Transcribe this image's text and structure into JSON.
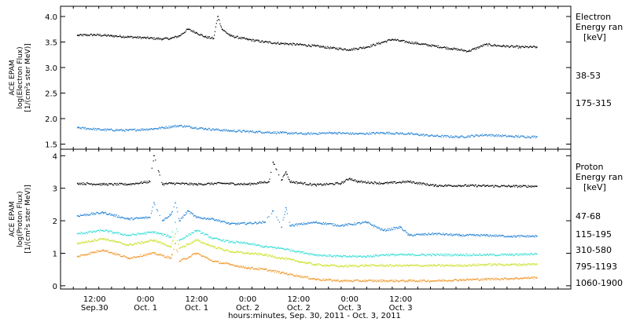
{
  "chart_data": [
    {
      "type": "scatter",
      "panel": "electron",
      "ylabel_lines": [
        "ACE EPAM",
        "log(Electron Flux)",
        "[1/(cm²s ster MeV)]"
      ],
      "ylim": [
        1.4,
        4.2
      ],
      "yticks": [
        1.5,
        2.0,
        2.5,
        3.0,
        3.5,
        4.0
      ],
      "ytick_labels": [
        "1.5",
        "2.0",
        "2.5",
        "3.0",
        "3.5",
        "4.0"
      ],
      "legend_title_lines": [
        "Electron",
        "Energy ran",
        "[keV]"
      ],
      "series": [
        {
          "name": "38-53",
          "color": "#000000",
          "x": [
            0,
            4,
            8,
            12,
            16,
            20,
            22,
            24,
            26,
            28,
            30,
            32,
            33,
            34,
            36,
            40,
            44,
            48,
            52,
            56,
            60,
            64,
            68,
            72,
            74,
            76,
            80,
            84,
            88,
            92,
            96,
            100,
            104,
            108
          ],
          "y": [
            3.63,
            3.64,
            3.62,
            3.6,
            3.58,
            3.56,
            3.57,
            3.62,
            3.75,
            3.68,
            3.6,
            3.57,
            4.0,
            3.75,
            3.62,
            3.55,
            3.5,
            3.47,
            3.45,
            3.42,
            3.38,
            3.35,
            3.4,
            3.5,
            3.55,
            3.52,
            3.47,
            3.42,
            3.37,
            3.32,
            3.45,
            3.42,
            3.4,
            3.4
          ]
        },
        {
          "name": "175-315",
          "color": "#1e7fd4",
          "x": [
            0,
            6,
            12,
            18,
            24,
            30,
            36,
            42,
            48,
            54,
            60,
            66,
            72,
            78,
            84,
            90,
            96,
            102,
            108
          ],
          "y": [
            1.82,
            1.78,
            1.77,
            1.8,
            1.86,
            1.8,
            1.76,
            1.74,
            1.72,
            1.7,
            1.72,
            1.7,
            1.72,
            1.7,
            1.66,
            1.64,
            1.68,
            1.65,
            1.64
          ]
        }
      ]
    },
    {
      "type": "scatter",
      "panel": "proton",
      "ylabel_lines": [
        "ACE EPAM",
        "log(Proton Flux)",
        "[1/(cm²s ster MeV)]"
      ],
      "ylim": [
        -0.1,
        4.2
      ],
      "yticks": [
        0,
        1,
        2,
        3,
        4
      ],
      "ytick_labels": [
        "0",
        "1",
        "2",
        "3",
        "4"
      ],
      "legend_title_lines": [
        "Proton",
        "Energy ran",
        "[keV]"
      ],
      "series": [
        {
          "name": "47-68",
          "color": "#000000",
          "x": [
            0,
            6,
            12,
            17,
            18,
            20,
            22,
            28,
            34,
            40,
            45,
            46,
            48,
            49,
            50,
            56,
            62,
            64,
            66,
            72,
            78,
            84,
            90,
            96,
            102,
            108
          ],
          "y": [
            3.15,
            3.12,
            3.12,
            3.2,
            4.0,
            3.12,
            3.15,
            3.12,
            3.15,
            3.12,
            3.2,
            3.8,
            3.25,
            3.5,
            3.2,
            3.1,
            3.15,
            3.3,
            3.2,
            3.15,
            3.2,
            3.08,
            3.08,
            3.07,
            3.06,
            3.06
          ]
        },
        {
          "name": "115-195",
          "color": "#1e7fd4",
          "x": [
            0,
            6,
            12,
            17,
            18,
            20,
            22,
            23,
            24,
            26,
            28,
            32,
            36,
            40,
            44,
            46,
            48,
            49,
            50,
            56,
            62,
            68,
            72,
            76,
            78,
            84,
            90,
            96,
            102,
            108
          ],
          "y": [
            2.15,
            2.25,
            2.05,
            2.1,
            2.55,
            2.0,
            2.2,
            2.55,
            2.0,
            2.3,
            2.1,
            2.05,
            1.9,
            1.92,
            1.95,
            2.3,
            1.8,
            2.4,
            1.85,
            1.95,
            1.85,
            1.95,
            1.7,
            1.8,
            1.55,
            1.6,
            1.55,
            1.55,
            1.52,
            1.52
          ]
        },
        {
          "name": "310-580",
          "color": "#30dcd4",
          "x": [
            0,
            6,
            12,
            18,
            22,
            23,
            24,
            28,
            32,
            36,
            40,
            44,
            48,
            52,
            56,
            62,
            68,
            72,
            78,
            84,
            90,
            96,
            102,
            108
          ],
          "y": [
            1.6,
            1.7,
            1.55,
            1.65,
            1.5,
            1.95,
            1.4,
            1.7,
            1.45,
            1.35,
            1.3,
            1.2,
            1.15,
            1.05,
            0.95,
            0.9,
            0.9,
            0.95,
            0.95,
            0.95,
            0.95,
            0.95,
            0.95,
            0.98
          ]
        },
        {
          "name": "795-1193",
          "color": "#c8e01e",
          "x": [
            0,
            6,
            12,
            18,
            22,
            23,
            24,
            28,
            32,
            36,
            40,
            44,
            48,
            52,
            56,
            62,
            68,
            72,
            78,
            84,
            90,
            96,
            102,
            108
          ],
          "y": [
            1.3,
            1.45,
            1.25,
            1.4,
            1.2,
            1.6,
            1.15,
            1.4,
            1.2,
            1.05,
            1.0,
            0.95,
            0.85,
            0.75,
            0.65,
            0.6,
            0.62,
            0.62,
            0.62,
            0.62,
            0.62,
            0.65,
            0.65,
            0.66
          ]
        },
        {
          "name": "1060-1900",
          "color": "#f0921e",
          "x": [
            0,
            6,
            12,
            18,
            22,
            23,
            24,
            28,
            32,
            36,
            40,
            44,
            48,
            52,
            56,
            62,
            68,
            72,
            78,
            84,
            90,
            96,
            102,
            108
          ],
          "y": [
            0.9,
            1.1,
            0.85,
            1.0,
            0.85,
            1.3,
            0.75,
            1.0,
            0.75,
            0.65,
            0.55,
            0.5,
            0.4,
            0.3,
            0.2,
            0.15,
            0.15,
            0.15,
            0.15,
            0.15,
            0.18,
            0.2,
            0.22,
            0.25
          ]
        }
      ]
    }
  ],
  "x_axis": {
    "range_hours": [
      -4,
      116
    ],
    "ticks": [
      {
        "hour": 4,
        "time": "12:00",
        "date": "Sep.30"
      },
      {
        "hour": 16,
        "time": "0:00",
        "date": "Oct. 1"
      },
      {
        "hour": 28,
        "time": "12:00",
        "date": "Oct. 1"
      },
      {
        "hour": 40,
        "time": "0:00",
        "date": "Oct. 2"
      },
      {
        "hour": 52,
        "time": "12:00",
        "date": "Oct. 2"
      },
      {
        "hour": 64,
        "time": "0:00",
        "date": "Oct. 3"
      },
      {
        "hour": 76,
        "time": "12:00",
        "date": "Oct. 3"
      }
    ],
    "label": "hours:minutes, Sep. 30, 2011 - Oct.  3, 2011"
  }
}
